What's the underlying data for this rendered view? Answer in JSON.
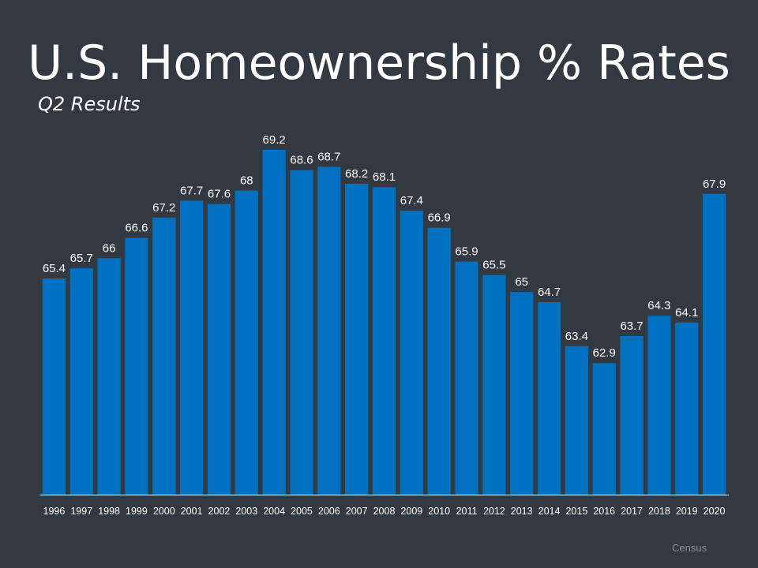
{
  "slide": {
    "title": "U.S. Homeownership % Rates",
    "subtitle": "Q2 Results",
    "source": "Census"
  },
  "chart_data": {
    "type": "bar",
    "title": "U.S. Homeownership % Rates",
    "subtitle": "Q2 Results",
    "xlabel": "",
    "ylabel": "",
    "categories": [
      "1996",
      "1997",
      "1998",
      "1999",
      "2000",
      "2001",
      "2002",
      "2003",
      "2004",
      "2005",
      "2006",
      "2007",
      "2008",
      "2009",
      "2010",
      "2011",
      "2012",
      "2013",
      "2014",
      "2015",
      "2016",
      "2017",
      "2018",
      "2019",
      "2020"
    ],
    "values": [
      65.4,
      65.7,
      66,
      66.6,
      67.2,
      67.7,
      67.6,
      68,
      69.2,
      68.6,
      68.7,
      68.2,
      68.1,
      67.4,
      66.9,
      65.9,
      65.5,
      65,
      64.7,
      63.4,
      62.9,
      63.7,
      64.3,
      64.1,
      67.9
    ],
    "data_labels": [
      "65.4",
      "65.7",
      "66",
      "66.6",
      "67.2",
      "67.7",
      "67.6",
      "68",
      "69.2",
      "68.6",
      "68.7",
      "68.2",
      "68.1",
      "67.4",
      "66.9",
      "65.9",
      "65.5",
      "65",
      "64.7",
      "63.4",
      "62.9",
      "63.7",
      "64.3",
      "64.1",
      "67.9"
    ],
    "grid": false,
    "legend": "none",
    "colors": {
      "background": "#333940",
      "bar": "#0070c0",
      "text": "#ffffff",
      "axis": "#ffffff",
      "source_text": "#8a9099"
    }
  }
}
